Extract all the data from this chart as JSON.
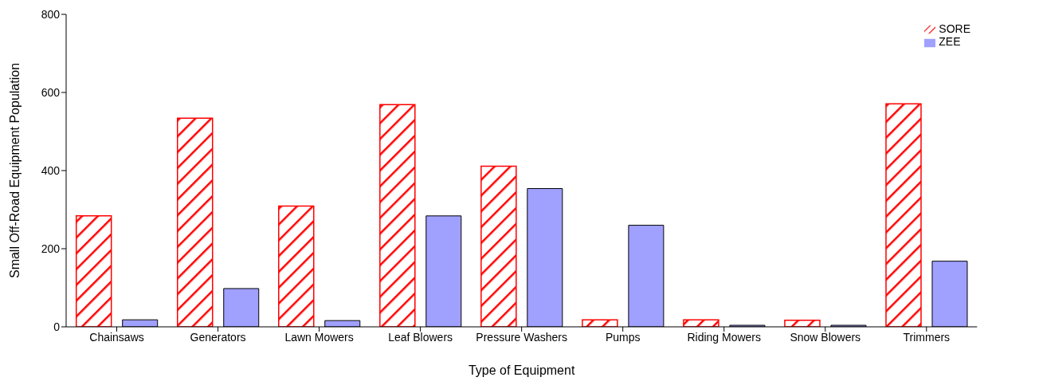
{
  "chart_data": {
    "type": "bar",
    "xlabel": "Type of Equipment",
    "ylabel": "Small Off-Road Equipment Population",
    "categories": [
      "Chainsaws",
      "Generators",
      "Lawn Mowers",
      "Leaf Blowers",
      "Pressure Washers",
      "Pumps",
      "Riding Mowers",
      "Snow Blowers",
      "Trimmers"
    ],
    "series": [
      {
        "name": "SORE",
        "color": "#ff0000",
        "values": [
          284,
          534,
          309,
          569,
          411,
          18,
          18,
          17,
          571
        ]
      },
      {
        "name": "ZEE",
        "color": "#a0a0ff",
        "values": [
          18,
          98,
          16,
          284,
          354,
          260,
          4,
          4,
          168
        ]
      }
    ],
    "ylim": [
      0,
      800
    ],
    "yticks": [
      0,
      200,
      400,
      600,
      800
    ],
    "grid": false,
    "legend": "top right"
  }
}
